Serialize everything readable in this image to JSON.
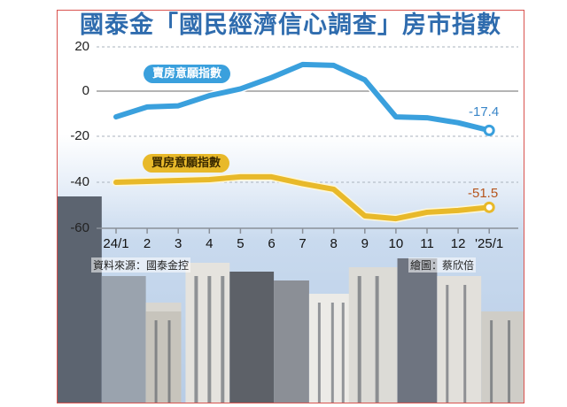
{
  "title": "國泰金「國民經濟信心調查」房市指數",
  "source_label": "資料來源：國泰金控",
  "credit_label": "繪圖：蔡欣倍",
  "colors": {
    "title": "#2f6cae",
    "sell": "#3aa0dd",
    "buy": "#e8b92a",
    "frame": "#d9534f"
  },
  "chart_data": {
    "type": "line",
    "title": "國泰金「國民經濟信心調查」房市指數",
    "xlabel": "",
    "ylabel": "",
    "categories": [
      "24/1",
      "2",
      "3",
      "4",
      "5",
      "6",
      "7",
      "8",
      "9",
      "10",
      "11",
      "12",
      "'25/1"
    ],
    "y_ticks": [
      20,
      0,
      -20,
      -40,
      -60
    ],
    "ylim": [
      -60,
      20
    ],
    "grid": "dashed horizontal",
    "series": [
      {
        "name": "賣房意願指數",
        "color": "#3aa0dd",
        "values": [
          -11.4,
          -7,
          -6.5,
          -2,
          1,
          6,
          11.8,
          11.4,
          5,
          -11.4,
          -11.8,
          -14,
          -17.4
        ],
        "end_label": "-17.4"
      },
      {
        "name": "買房意願指數",
        "color": "#e8b92a",
        "values": [
          -40.4,
          -40,
          -39.6,
          -39.2,
          -38,
          -38,
          -41,
          -43.5,
          -55.3,
          -56.5,
          -53.7,
          -52.9,
          -51.5
        ],
        "end_label": "-51.5"
      }
    ],
    "legend": "inline pill labels above each line",
    "source": "資料來源：國泰金控",
    "credit": "繪圖：蔡欣倍"
  }
}
